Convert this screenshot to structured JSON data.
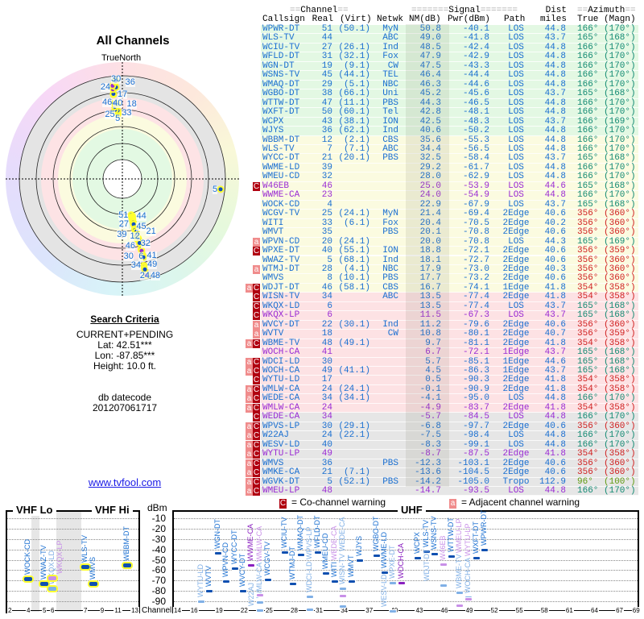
{
  "left": {
    "title": "All Channels",
    "true_north": "TrueNorth",
    "search_criteria": {
      "heading": "Search Criteria",
      "mode": "CURRENT+PENDING",
      "lat": "Lat: 42.51***",
      "lon": "Lon: -87.85***",
      "height": "Height: 10.0 ft."
    },
    "db_label": "db datecode",
    "db_value": "201207061717",
    "link": "www.tvfool.com"
  },
  "table": {
    "groups": {
      "channel": "Channel",
      "signal": "Signal",
      "dist": "Dist",
      "azimuth": "Azimuth"
    },
    "columns": {
      "callsign": "Callsign",
      "real": "Real",
      "virt": "(Virt)",
      "netwk": "Netwk",
      "nm": "NM(dB)",
      "pwr": "Pwr(dBm)",
      "path": "Path",
      "miles": "miles",
      "true": "True",
      "magn": "(Magn)"
    },
    "rows": [
      {
        "flags": "",
        "callsign": "WPWR-DT",
        "real": "51",
        "virt": "(50.1)",
        "netwk": "MyN",
        "nm": "50.8",
        "pwr": "-40.1",
        "path": "LOS",
        "dist": "44.8",
        "true": "166°",
        "magn": "(170°)"
      },
      {
        "flags": "",
        "callsign": "WLS-TV",
        "real": "44",
        "virt": "",
        "netwk": "ABC",
        "nm": "49.0",
        "pwr": "-41.8",
        "path": "LOS",
        "dist": "43.7",
        "true": "165°",
        "magn": "(168°)"
      },
      {
        "flags": "",
        "callsign": "WCIU-TV",
        "real": "27",
        "virt": "(26.1)",
        "netwk": "Ind",
        "nm": "48.5",
        "pwr": "-42.4",
        "path": "LOS",
        "dist": "44.8",
        "true": "166°",
        "magn": "(170°)"
      },
      {
        "flags": "",
        "callsign": "WFLD-DT",
        "real": "31",
        "virt": "(32.1)",
        "netwk": "Fox",
        "nm": "47.9",
        "pwr": "-42.9",
        "path": "LOS",
        "dist": "44.8",
        "true": "166°",
        "magn": "(170°)"
      },
      {
        "flags": "",
        "callsign": "WGN-DT",
        "real": "19",
        "virt": "(9.1)",
        "netwk": "CW",
        "nm": "47.5",
        "pwr": "-43.3",
        "path": "LOS",
        "dist": "44.8",
        "true": "166°",
        "magn": "(170°)"
      },
      {
        "flags": "",
        "callsign": "WSNS-TV",
        "real": "45",
        "virt": "(44.1)",
        "netwk": "TEL",
        "nm": "46.4",
        "pwr": "-44.4",
        "path": "LOS",
        "dist": "44.8",
        "true": "166°",
        "magn": "(170°)"
      },
      {
        "flags": "",
        "callsign": "WMAQ-DT",
        "real": "29",
        "virt": "(5.1)",
        "netwk": "NBC",
        "nm": "46.3",
        "pwr": "-44.6",
        "path": "LOS",
        "dist": "44.8",
        "true": "166°",
        "magn": "(170°)"
      },
      {
        "flags": "",
        "callsign": "WGBO-DT",
        "real": "38",
        "virt": "(66.1)",
        "netwk": "Uni",
        "nm": "45.2",
        "pwr": "-45.6",
        "path": "LOS",
        "dist": "43.7",
        "true": "165°",
        "magn": "(168°)"
      },
      {
        "flags": "",
        "callsign": "WTTW-DT",
        "real": "47",
        "virt": "(11.1)",
        "netwk": "PBS",
        "nm": "44.3",
        "pwr": "-46.5",
        "path": "LOS",
        "dist": "44.8",
        "true": "166°",
        "magn": "(170°)"
      },
      {
        "flags": "",
        "callsign": "WXFT-DT",
        "real": "50",
        "virt": "(60.1)",
        "netwk": "Tel",
        "nm": "42.8",
        "pwr": "-48.1",
        "path": "LOS",
        "dist": "44.8",
        "true": "166°",
        "magn": "(170°)"
      },
      {
        "flags": "",
        "callsign": "WCPX",
        "real": "43",
        "virt": "(38.1)",
        "netwk": "ION",
        "nm": "42.5",
        "pwr": "-48.3",
        "path": "LOS",
        "dist": "43.7",
        "true": "166°",
        "magn": "(169°)"
      },
      {
        "flags": "",
        "callsign": "WJYS",
        "real": "36",
        "virt": "(62.1)",
        "netwk": "Ind",
        "nm": "40.6",
        "pwr": "-50.2",
        "path": "LOS",
        "dist": "44.8",
        "true": "166°",
        "magn": "(170°)"
      },
      {
        "flags": "",
        "callsign": "WBBM-DT",
        "real": "12",
        "virt": "(2.1)",
        "netwk": "CBS",
        "nm": "35.6",
        "pwr": "-55.3",
        "path": "LOS",
        "dist": "44.8",
        "true": "166°",
        "magn": "(170°)"
      },
      {
        "flags": "",
        "callsign": "WLS-TV",
        "real": "7",
        "virt": "(7.1)",
        "netwk": "ABC",
        "nm": "34.4",
        "pwr": "-56.5",
        "path": "LOS",
        "dist": "44.8",
        "true": "166°",
        "magn": "(170°)"
      },
      {
        "flags": "",
        "callsign": "WYCC-DT",
        "real": "21",
        "virt": "(20.1)",
        "netwk": "PBS",
        "nm": "32.5",
        "pwr": "-58.4",
        "path": "LOS",
        "dist": "43.7",
        "true": "165°",
        "magn": "(168°)"
      },
      {
        "flags": "",
        "callsign": "WWME-LD",
        "real": "39",
        "virt": "",
        "netwk": "",
        "nm": "29.2",
        "pwr": "-61.7",
        "path": "LOS",
        "dist": "44.8",
        "true": "166°",
        "magn": "(170°)"
      },
      {
        "flags": "",
        "callsign": "WMEU-CD",
        "real": "32",
        "virt": "",
        "netwk": "",
        "nm": "28.0",
        "pwr": "-62.9",
        "path": "LOS",
        "dist": "44.8",
        "true": "166°",
        "magn": "(170°)"
      },
      {
        "flags": "C",
        "callsign": "W46EB",
        "real": "46",
        "virt": "",
        "netwk": "",
        "nm": "25.0",
        "pwr": "-53.9",
        "path": "LOS",
        "dist": "44.6",
        "true": "165°",
        "magn": "(168°)",
        "pending": true
      },
      {
        "flags": "",
        "callsign": "WWME-CA",
        "real": "23",
        "virt": "",
        "netwk": "",
        "nm": "24.0",
        "pwr": "-54.9",
        "path": "LOS",
        "dist": "44.8",
        "true": "166°",
        "magn": "(170°)",
        "pending": true
      },
      {
        "flags": "",
        "callsign": "WOCK-CD",
        "real": "4",
        "virt": "",
        "netwk": "",
        "nm": "22.9",
        "pwr": "-67.9",
        "path": "LOS",
        "dist": "43.7",
        "true": "165°",
        "magn": "(168°)"
      },
      {
        "flags": "",
        "callsign": "WCGV-TV",
        "real": "25",
        "virt": "(24.1)",
        "netwk": "MyN",
        "nm": "21.4",
        "pwr": "-69.4",
        "path": "2Edge",
        "dist": "40.6",
        "true": "356°",
        "magn": "(360°)"
      },
      {
        "flags": "",
        "callsign": "WITI",
        "real": "33",
        "virt": "(6.1)",
        "netwk": "Fox",
        "nm": "20.4",
        "pwr": "-70.5",
        "path": "2Edge",
        "dist": "40.2",
        "true": "356°",
        "magn": "(360°)"
      },
      {
        "flags": "",
        "callsign": "WMVT",
        "real": "35",
        "virt": "",
        "netwk": "PBS",
        "nm": "20.1",
        "pwr": "-70.8",
        "path": "2Edge",
        "dist": "40.6",
        "true": "356°",
        "magn": "(360°)"
      },
      {
        "flags": "a",
        "callsign": "WPVN-CD",
        "real": "20",
        "virt": "(24.1)",
        "netwk": "",
        "nm": "20.0",
        "pwr": "-70.8",
        "path": "LOS",
        "dist": "44.3",
        "true": "165°",
        "magn": "(169°)"
      },
      {
        "flags": "C",
        "callsign": "WPXE-DT",
        "real": "40",
        "virt": "(55.1)",
        "netwk": "ION",
        "nm": "18.8",
        "pwr": "-72.1",
        "path": "2Edge",
        "dist": "40.6",
        "true": "356°",
        "magn": "(359°)"
      },
      {
        "flags": "",
        "callsign": "WWAZ-TV",
        "real": "5",
        "virt": "(68.1)",
        "netwk": "Ind",
        "nm": "18.1",
        "pwr": "-72.7",
        "path": "2Edge",
        "dist": "40.6",
        "true": "356°",
        "magn": "(360°)"
      },
      {
        "flags": "a",
        "callsign": "WTMJ-DT",
        "real": "28",
        "virt": "(4.1)",
        "netwk": "NBC",
        "nm": "17.9",
        "pwr": "-73.0",
        "path": "2Edge",
        "dist": "40.3",
        "true": "356°",
        "magn": "(360°)"
      },
      {
        "flags": "",
        "callsign": "WMVS",
        "real": "8",
        "virt": "(10.1)",
        "netwk": "PBS",
        "nm": "17.7",
        "pwr": "-73.2",
        "path": "2Edge",
        "dist": "40.6",
        "true": "356°",
        "magn": "(360°)"
      },
      {
        "flags": "aC",
        "callsign": "WDJT-DT",
        "real": "46",
        "virt": "(58.1)",
        "netwk": "CBS",
        "nm": "16.7",
        "pwr": "-74.1",
        "path": "1Edge",
        "dist": "41.8",
        "true": "354°",
        "magn": "(358°)"
      },
      {
        "flags": "C",
        "callsign": "WISN-TV",
        "real": "34",
        "virt": "",
        "netwk": "ABC",
        "nm": "13.5",
        "pwr": "-77.4",
        "path": "2Edge",
        "dist": "41.8",
        "true": "354°",
        "magn": "(358°)"
      },
      {
        "flags": "C",
        "callsign": "WKQX-LD",
        "real": "6",
        "virt": "",
        "netwk": "",
        "nm": "13.5",
        "pwr": "-77.4",
        "path": "LOS",
        "dist": "43.7",
        "true": "165°",
        "magn": "(168°)"
      },
      {
        "flags": "C",
        "callsign": "WKQX-LP",
        "real": "6",
        "virt": "",
        "netwk": "",
        "nm": "11.5",
        "pwr": "-67.3",
        "path": "LOS",
        "dist": "43.7",
        "true": "165°",
        "magn": "(168°)",
        "pending": true
      },
      {
        "flags": "a",
        "callsign": "WVCY-DT",
        "real": "22",
        "virt": "(30.1)",
        "netwk": "Ind",
        "nm": "11.2",
        "pwr": "-79.6",
        "path": "2Edge",
        "dist": "40.6",
        "true": "356°",
        "magn": "(360°)"
      },
      {
        "flags": "a",
        "callsign": "WVTV",
        "real": "18",
        "virt": "",
        "netwk": "CW",
        "nm": "10.8",
        "pwr": "-80.1",
        "path": "2Edge",
        "dist": "40.7",
        "true": "356°",
        "magn": "(359°)"
      },
      {
        "flags": "aC",
        "callsign": "WBME-TV",
        "real": "48",
        "virt": "(49.1)",
        "netwk": "",
        "nm": "9.7",
        "pwr": "-81.1",
        "path": "2Edge",
        "dist": "41.8",
        "true": "354°",
        "magn": "(358°)"
      },
      {
        "flags": "",
        "callsign": "WOCH-CA",
        "real": "41",
        "virt": "",
        "netwk": "",
        "nm": "6.7",
        "pwr": "-72.1",
        "path": "1Edge",
        "dist": "43.7",
        "true": "165°",
        "magn": "(168°)",
        "pending": true
      },
      {
        "flags": "aC",
        "callsign": "WDCI-LD",
        "real": "30",
        "virt": "",
        "netwk": "",
        "nm": "5.7",
        "pwr": "-85.1",
        "path": "1Edge",
        "dist": "44.6",
        "true": "165°",
        "magn": "(168°)"
      },
      {
        "flags": "aC",
        "callsign": "WOCH-CA",
        "real": "49",
        "virt": "(41.1)",
        "netwk": "",
        "nm": "4.5",
        "pwr": "-86.3",
        "path": "1Edge",
        "dist": "43.7",
        "true": "165°",
        "magn": "(168°)"
      },
      {
        "flags": "C",
        "callsign": "WYTU-LD",
        "real": "17",
        "virt": "",
        "netwk": "",
        "nm": "0.5",
        "pwr": "-90.3",
        "path": "2Edge",
        "dist": "41.8",
        "true": "354°",
        "magn": "(358°)"
      },
      {
        "flags": "aC",
        "callsign": "WMLW-CA",
        "real": "24",
        "virt": "(24.1)",
        "netwk": "",
        "nm": "-0.1",
        "pwr": "-90.9",
        "path": "2Edge",
        "dist": "41.8",
        "true": "354°",
        "magn": "(358°)"
      },
      {
        "flags": "aC",
        "callsign": "WEDE-CA",
        "real": "34",
        "virt": "(34.1)",
        "netwk": "",
        "nm": "-4.1",
        "pwr": "-95.0",
        "path": "LOS",
        "dist": "44.8",
        "true": "166°",
        "magn": "(170°)"
      },
      {
        "flags": "aC",
        "callsign": "WMLW-CA",
        "real": "24",
        "virt": "",
        "netwk": "",
        "nm": "-4.9",
        "pwr": "-83.7",
        "path": "2Edge",
        "dist": "41.8",
        "true": "354°",
        "magn": "(358°)",
        "pending": true
      },
      {
        "flags": "C",
        "callsign": "WEDE-CA",
        "real": "34",
        "virt": "",
        "netwk": "",
        "nm": "-5.7",
        "pwr": "-84.5",
        "path": "LOS",
        "dist": "44.8",
        "true": "166°",
        "magn": "(170°)",
        "pending": true
      },
      {
        "flags": "aC",
        "callsign": "WPVS-LP",
        "real": "30",
        "virt": "(29.1)",
        "netwk": "",
        "nm": "-6.8",
        "pwr": "-97.7",
        "path": "2Edge",
        "dist": "40.6",
        "true": "356°",
        "magn": "(360°)"
      },
      {
        "flags": "aC",
        "callsign": "W22AJ",
        "real": "24",
        "virt": "(22.1)",
        "netwk": "",
        "nm": "-7.5",
        "pwr": "-98.4",
        "path": "LOS",
        "dist": "44.8",
        "true": "166°",
        "magn": "(170°)"
      },
      {
        "flags": "aC",
        "callsign": "WESV-LD",
        "real": "40",
        "virt": "",
        "netwk": "",
        "nm": "-8.3",
        "pwr": "-99.1",
        "path": "LOS",
        "dist": "44.8",
        "true": "166°",
        "magn": "(170°)"
      },
      {
        "flags": "aC",
        "callsign": "WYTU-LP",
        "real": "49",
        "virt": "",
        "netwk": "",
        "nm": "-8.7",
        "pwr": "-87.5",
        "path": "2Edge",
        "dist": "41.8",
        "true": "354°",
        "magn": "(358°)",
        "pending": true
      },
      {
        "flags": "aC",
        "callsign": "WMVS",
        "real": "36",
        "virt": "",
        "netwk": "PBS",
        "nm": "-12.3",
        "pwr": "-103.1",
        "path": "2Edge",
        "dist": "40.6",
        "true": "356°",
        "magn": "(360°)"
      },
      {
        "flags": "aC",
        "callsign": "WMKE-CA",
        "real": "21",
        "virt": "(7.1)",
        "netwk": "",
        "nm": "-13.6",
        "pwr": "-104.5",
        "path": "2Edge",
        "dist": "40.6",
        "true": "356°",
        "magn": "(360°)"
      },
      {
        "flags": "aC",
        "callsign": "WGVK-DT",
        "real": "5",
        "virt": "(52.1)",
        "netwk": "PBS",
        "nm": "-14.2",
        "pwr": "-105.0",
        "path": "Tropo",
        "dist": "112.9",
        "true": "96°",
        "magn": "(100°)"
      },
      {
        "flags": "aC",
        "callsign": "WMEU-LP",
        "real": "48",
        "virt": "",
        "netwk": "",
        "nm": "-14.7",
        "pwr": "-93.5",
        "path": "LOS",
        "dist": "44.8",
        "true": "166°",
        "magn": "(170°)",
        "pending": true
      }
    ]
  },
  "legend": {
    "co_flag": "C",
    "co_text": "= Co-channel warning",
    "adj_flag": "a",
    "adj_text": "= Adjacent channel warning"
  },
  "spectrum": {
    "vhf_lo": "VHF Lo",
    "vhf_hi": "VHF Hi",
    "uhf": "UHF",
    "unit": "dBm",
    "channel_label": "Channel",
    "dbm_ticks": [
      "-10",
      "-20",
      "-30",
      "-40",
      "-50",
      "-60",
      "-70",
      "-80",
      "-90"
    ],
    "vhf_channel_ticks": [
      "2",
      "4",
      "5",
      "6",
      "7",
      "9",
      "11",
      "13"
    ],
    "uhf_channel_ticks": [
      "14",
      "16",
      "19",
      "22",
      "25",
      "28",
      "31",
      "34",
      "37",
      "40",
      "43",
      "46",
      "49",
      "52",
      "55",
      "58",
      "61",
      "64",
      "67",
      "69"
    ]
  },
  "colors": {
    "blue": "#1a6fd1",
    "purple": "#9a2bd4",
    "co_flag": "#b00010",
    "adj_flag": "#f08c8c"
  }
}
